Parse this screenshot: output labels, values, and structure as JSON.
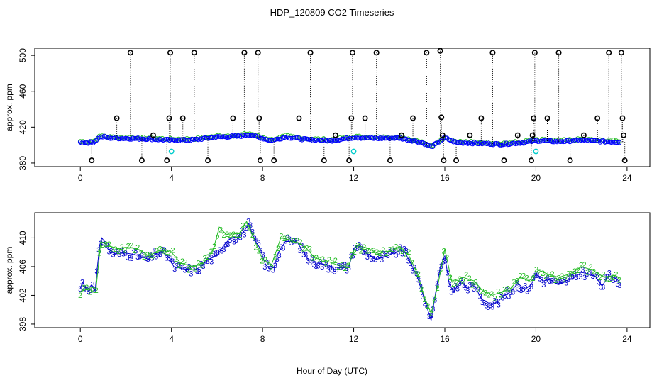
{
  "title": "HDP_120809  CO2 Timeseries",
  "xlabel": "Hour of Day (UTC)",
  "chart_data": [
    {
      "type": "scatter",
      "title": "",
      "ylabel": "approx. ppm",
      "xlim": [
        -2,
        25
      ],
      "ylim": [
        376,
        508
      ],
      "xticks": [
        0,
        4,
        8,
        12,
        16,
        20,
        24
      ],
      "yticks": [
        380,
        420,
        460,
        500
      ],
      "grid": false,
      "colors": {
        "trace": "#0000ff",
        "green": "#22bb22",
        "calib": "#000000",
        "cyan": "#00cccc",
        "drop": "#000000"
      },
      "series_trace": [
        [
          0,
          403
        ],
        [
          0.3,
          402.8
        ],
        [
          0.6,
          403.5
        ],
        [
          0.8,
          408
        ],
        [
          1.0,
          409.5
        ],
        [
          1.3,
          408
        ],
        [
          2,
          407.5
        ],
        [
          3,
          407
        ],
        [
          4,
          405.5
        ],
        [
          5,
          406
        ],
        [
          6,
          409
        ],
        [
          7,
          410
        ],
        [
          7.4,
          412
        ],
        [
          7.8,
          409
        ],
        [
          8.4,
          405
        ],
        [
          9,
          409
        ],
        [
          10,
          406
        ],
        [
          11,
          405
        ],
        [
          12,
          408.5
        ],
        [
          13,
          407.5
        ],
        [
          14,
          408
        ],
        [
          15,
          403
        ],
        [
          15.4,
          398
        ],
        [
          16,
          408
        ],
        [
          16.5,
          403
        ],
        [
          17.5,
          402
        ],
        [
          18.5,
          401
        ],
        [
          19.5,
          403
        ],
        [
          20,
          405
        ],
        [
          21,
          404
        ],
        [
          22,
          405.5
        ],
        [
          23,
          404
        ],
        [
          23.7,
          403.5
        ]
      ],
      "calib_points": [
        [
          0.5,
          383
        ],
        [
          1.6,
          430
        ],
        [
          2.2,
          503
        ],
        [
          2.7,
          383
        ],
        [
          3.2,
          411
        ],
        [
          3.8,
          383
        ],
        [
          3.9,
          430
        ],
        [
          3.95,
          503
        ],
        [
          4.5,
          430
        ],
        [
          5.0,
          503
        ],
        [
          5.6,
          383
        ],
        [
          6.7,
          430
        ],
        [
          7.2,
          503
        ],
        [
          7.8,
          503
        ],
        [
          7.85,
          430
        ],
        [
          7.9,
          383
        ],
        [
          8.5,
          383
        ],
        [
          9.6,
          430
        ],
        [
          10.1,
          503
        ],
        [
          10.7,
          383
        ],
        [
          11.2,
          411
        ],
        [
          11.8,
          383
        ],
        [
          11.9,
          430
        ],
        [
          11.95,
          503
        ],
        [
          12.5,
          430
        ],
        [
          13.0,
          503
        ],
        [
          13.6,
          383
        ],
        [
          14.1,
          411
        ],
        [
          14.6,
          430
        ],
        [
          15.2,
          503
        ],
        [
          15.8,
          505
        ],
        [
          15.85,
          431
        ],
        [
          15.9,
          411
        ],
        [
          15.95,
          383
        ],
        [
          16.5,
          383
        ],
        [
          17.1,
          411
        ],
        [
          17.6,
          430
        ],
        [
          18.1,
          503
        ],
        [
          18.6,
          383
        ],
        [
          19.2,
          411
        ],
        [
          19.8,
          383
        ],
        [
          19.85,
          411
        ],
        [
          19.9,
          430
        ],
        [
          19.95,
          503
        ],
        [
          20.5,
          430
        ],
        [
          21.0,
          503
        ],
        [
          21.5,
          383
        ],
        [
          22.1,
          411
        ],
        [
          22.7,
          430
        ],
        [
          23.2,
          503
        ],
        [
          23.75,
          503
        ],
        [
          23.8,
          430
        ],
        [
          23.85,
          411
        ],
        [
          23.9,
          383
        ]
      ],
      "cyan_points": [
        [
          4.0,
          393
        ],
        [
          12.0,
          393
        ],
        [
          20.0,
          393
        ]
      ]
    },
    {
      "type": "line",
      "title": "",
      "ylabel": "approx. ppm",
      "xlim": [
        -2,
        25
      ],
      "ylim": [
        397.5,
        413.5
      ],
      "xticks": [
        0,
        4,
        8,
        12,
        16,
        20,
        24
      ],
      "yticks": [
        398,
        402,
        406,
        410
      ],
      "grid": false,
      "series": [
        {
          "name": "3",
          "color": "#0000cc",
          "points": [
            [
              0,
              403
            ],
            [
              0.1,
              403.8
            ],
            [
              0.3,
              402.8
            ],
            [
              0.5,
              403.5
            ],
            [
              0.65,
              402.6
            ],
            [
              0.75,
              406
            ],
            [
              0.85,
              409
            ],
            [
              0.95,
              410
            ],
            [
              1.05,
              409.5
            ],
            [
              1.2,
              408.5
            ],
            [
              1.5,
              407.8
            ],
            [
              2,
              407.9
            ],
            [
              2.5,
              407.6
            ],
            [
              3,
              407
            ],
            [
              3.3,
              407.8
            ],
            [
              3.6,
              408
            ],
            [
              3.9,
              407.3
            ],
            [
              4.1,
              406
            ],
            [
              4.5,
              405.7
            ],
            [
              5,
              405.5
            ],
            [
              5.3,
              406
            ],
            [
              5.6,
              407
            ],
            [
              6,
              407.5
            ],
            [
              6.3,
              409
            ],
            [
              6.6,
              410
            ],
            [
              7,
              410.2
            ],
            [
              7.2,
              411
            ],
            [
              7.4,
              412
            ],
            [
              7.55,
              410.5
            ],
            [
              7.7,
              409.5
            ],
            [
              7.9,
              408.5
            ],
            [
              8.1,
              406.5
            ],
            [
              8.3,
              405.7
            ],
            [
              8.5,
              405.9
            ],
            [
              8.7,
              408
            ],
            [
              9,
              409.5
            ],
            [
              9.5,
              409.5
            ],
            [
              10,
              407
            ],
            [
              10.5,
              406.5
            ],
            [
              11,
              406
            ],
            [
              11.5,
              405.8
            ],
            [
              11.8,
              406
            ],
            [
              12,
              408.5
            ],
            [
              12.2,
              409
            ],
            [
              12.5,
              408
            ],
            [
              13,
              407
            ],
            [
              13.5,
              407.5
            ],
            [
              13.8,
              408
            ],
            [
              14.2,
              408.3
            ],
            [
              14.5,
              406.5
            ],
            [
              14.8,
              404.5
            ],
            [
              15,
              402.5
            ],
            [
              15.2,
              400.5
            ],
            [
              15.4,
              398.5
            ],
            [
              15.6,
              402.5
            ],
            [
              15.8,
              406
            ],
            [
              16,
              407.5
            ],
            [
              16.2,
              403.5
            ],
            [
              16.4,
              402.5
            ],
            [
              16.7,
              404
            ],
            [
              17,
              403
            ],
            [
              17.3,
              403.5
            ],
            [
              17.6,
              401.5
            ],
            [
              18,
              400.8
            ],
            [
              18.3,
              401
            ],
            [
              18.6,
              402
            ],
            [
              18.9,
              402.5
            ],
            [
              19.2,
              403.7
            ],
            [
              19.5,
              402.8
            ],
            [
              19.8,
              403.5
            ],
            [
              20,
              405
            ],
            [
              20.3,
              404
            ],
            [
              20.6,
              404.2
            ],
            [
              21,
              403.5
            ],
            [
              21.3,
              404
            ],
            [
              21.6,
              404.3
            ],
            [
              22,
              405.2
            ],
            [
              22.3,
              405
            ],
            [
              22.6,
              404.7
            ],
            [
              22.9,
              403.3
            ],
            [
              23.2,
              404.7
            ],
            [
              23.5,
              404.4
            ],
            [
              23.7,
              403.8
            ]
          ]
        },
        {
          "name": "2",
          "color": "#22bb22",
          "points": [
            [
              0,
              402.5
            ],
            [
              0.4,
              403
            ],
            [
              0.7,
              403.2
            ],
            [
              0.9,
              409.5
            ],
            [
              1.2,
              409
            ],
            [
              1.6,
              408.5
            ],
            [
              2,
              408.7
            ],
            [
              2.5,
              408.5
            ],
            [
              3,
              407.5
            ],
            [
              3.5,
              408.3
            ],
            [
              4,
              408
            ],
            [
              4.4,
              406.5
            ],
            [
              4.9,
              406
            ],
            [
              5.4,
              406.5
            ],
            [
              5.8,
              408
            ],
            [
              6.1,
              411.5
            ],
            [
              6.4,
              410.5
            ],
            [
              7,
              410.6
            ],
            [
              7.3,
              412.3
            ],
            [
              7.6,
              410
            ],
            [
              8,
              407
            ],
            [
              8.4,
              406.3
            ],
            [
              8.8,
              410
            ],
            [
              9.2,
              409.7
            ],
            [
              9.8,
              409
            ],
            [
              10.3,
              407.2
            ],
            [
              10.8,
              406.8
            ],
            [
              11.3,
              406.2
            ],
            [
              11.8,
              406.3
            ],
            [
              12.1,
              409
            ],
            [
              12.6,
              408.6
            ],
            [
              13.1,
              407.8
            ],
            [
              13.6,
              408.2
            ],
            [
              14,
              408.7
            ],
            [
              14.4,
              407.7
            ],
            [
              14.8,
              405
            ],
            [
              15.1,
              401.8
            ],
            [
              15.4,
              399.5
            ],
            [
              15.7,
              403.5
            ],
            [
              16,
              408.5
            ],
            [
              16.3,
              404
            ],
            [
              16.8,
              404.5
            ],
            [
              17.3,
              404
            ],
            [
              17.7,
              402.5
            ],
            [
              18.1,
              402
            ],
            [
              18.5,
              402.5
            ],
            [
              18.9,
              403
            ],
            [
              19.3,
              404.5
            ],
            [
              19.7,
              404
            ],
            [
              20.1,
              405.5
            ],
            [
              20.5,
              405
            ],
            [
              21,
              404.5
            ],
            [
              21.5,
              405
            ],
            [
              22,
              406
            ],
            [
              22.5,
              405.5
            ],
            [
              23,
              404.5
            ],
            [
              23.5,
              404.8
            ],
            [
              23.7,
              404.2
            ]
          ]
        }
      ]
    }
  ]
}
